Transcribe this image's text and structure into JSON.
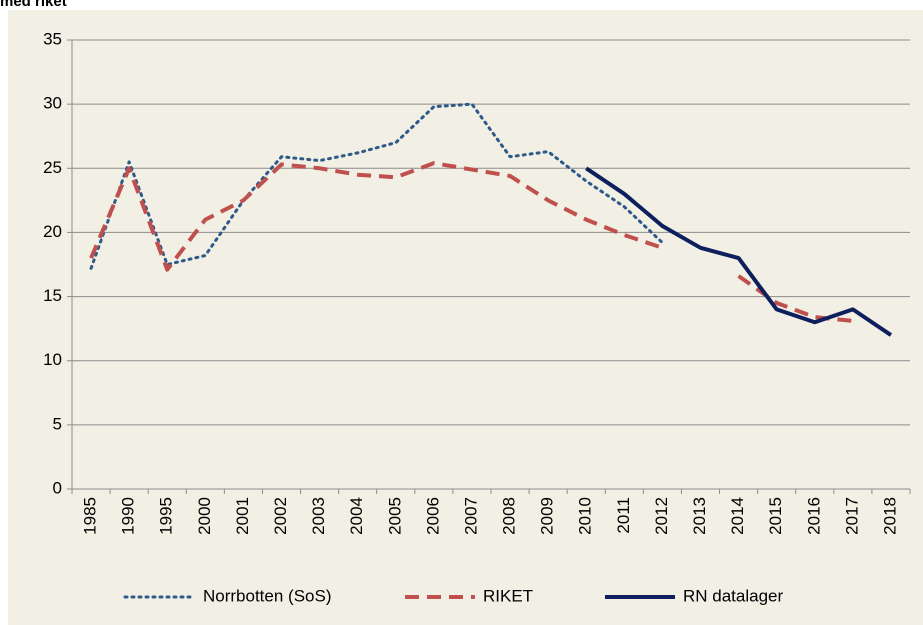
{
  "chart_data": {
    "type": "line",
    "title": "med riket",
    "categories": [
      "1985",
      "1990",
      "1995",
      "2000",
      "2001",
      "2002",
      "2003",
      "2004",
      "2005",
      "2006",
      "2007",
      "2008",
      "2009",
      "2010",
      "2011",
      "2012",
      "2013",
      "2014",
      "2015",
      "2016",
      "2017",
      "2018"
    ],
    "series": [
      {
        "name": "Norrbotten (SoS)",
        "color": "#2e5a8a",
        "style": "dotted",
        "values": [
          17.2,
          25.5,
          17.5,
          18.2,
          22.5,
          25.9,
          25.6,
          26.2,
          27,
          29.8,
          30,
          25.9,
          26.3,
          24,
          22,
          19.2,
          null,
          null,
          null,
          null,
          null,
          null
        ]
      },
      {
        "name": "RIKET",
        "color": "#c0504d",
        "style": "dashed",
        "values": [
          18,
          25,
          17.1,
          21,
          22.5,
          25.3,
          25,
          24.5,
          24.3,
          25.4,
          24.9,
          24.4,
          22.5,
          21,
          19.8,
          18.8,
          null,
          16.6,
          14.5,
          13.4,
          13.1,
          null
        ]
      },
      {
        "name": "RN datalager",
        "color": "#0d1f5c",
        "style": "solid",
        "values": [
          null,
          null,
          null,
          null,
          null,
          null,
          null,
          null,
          null,
          null,
          null,
          null,
          null,
          25,
          23,
          20.5,
          18.8,
          18,
          14,
          13,
          14,
          12
        ]
      }
    ],
    "ylim": [
      0,
      35
    ],
    "yticks": [
      0,
      5,
      10,
      15,
      20,
      25,
      30,
      35
    ],
    "grid": true,
    "legend": "bottom"
  }
}
